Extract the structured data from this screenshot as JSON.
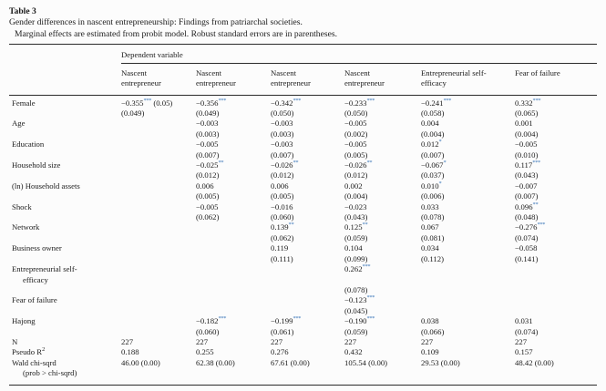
{
  "colors": {
    "text": "#1b1b1b",
    "rule": "#2b2b2b",
    "stars": "#3b76b8"
  },
  "caption": {
    "label": "Table 3",
    "title": "Gender differences in nascent entrepreneurship: Findings from patriarchal societies.",
    "note": "Marginal effects are estimated from probit model. Robust standard errors are in parentheses."
  },
  "header": {
    "spanner": "Dependent variable",
    "columns": [
      "Nascent entrepreneur",
      "Nascent entrepreneur",
      "Nascent entrepreneur",
      "Nascent entrepreneur",
      "Entrepreneurial self-efficacy",
      "Fear of failure"
    ]
  },
  "body": {
    "rows": [
      {
        "label": [
          {
            "t": "Female"
          }
        ],
        "cells": [
          [
            {
              "v": "−0.355",
              "s": "***",
              "a": " (0.05)"
            },
            "(0.049)"
          ],
          [
            {
              "v": "−0.356",
              "s": "***"
            },
            "(0.049)"
          ],
          [
            {
              "v": "−0.342",
              "s": "***"
            },
            "(0.050)"
          ],
          [
            {
              "v": "−0.233",
              "s": "***"
            },
            "(0.050)"
          ],
          [
            {
              "v": "−0.241",
              "s": "***"
            },
            "(0.058)"
          ],
          [
            {
              "v": "0.332",
              "s": "***"
            },
            "(0.065)"
          ]
        ]
      },
      {
        "label": [
          {
            "t": "Age"
          }
        ],
        "cells": [
          null,
          [
            "−0.003",
            "(0.003)"
          ],
          [
            "−0.003",
            "(0.003)"
          ],
          [
            "−0.005",
            "(0.002)"
          ],
          [
            "0.004",
            "(0.004)"
          ],
          [
            "0.001",
            "(0.004)"
          ]
        ]
      },
      {
        "label": [
          {
            "t": "Education"
          }
        ],
        "cells": [
          null,
          [
            "−0.005",
            "(0.007)"
          ],
          [
            "−0.003",
            "(0.007)"
          ],
          [
            "−0.005",
            "(0.005)"
          ],
          [
            {
              "v": "0.012",
              "s": "*"
            },
            "(0.007)"
          ],
          [
            "−0.005",
            "(0.010)"
          ]
        ]
      },
      {
        "label": [
          {
            "t": "Household size"
          }
        ],
        "cells": [
          null,
          [
            {
              "v": "−0.025",
              "s": "**"
            },
            "(0.012)"
          ],
          [
            {
              "v": "−0.026",
              "s": "**"
            },
            "(0.012)"
          ],
          [
            {
              "v": "−0.026",
              "s": "**"
            },
            "(0.012)"
          ],
          [
            {
              "v": "−0.067",
              "s": "*"
            },
            "(0.037)"
          ],
          [
            {
              "v": "0.117",
              "s": "***"
            },
            "(0.043)"
          ]
        ]
      },
      {
        "label": [
          {
            "t": "(ln) Household assets"
          }
        ],
        "cells": [
          null,
          [
            "0.006",
            "(0.005)"
          ],
          [
            "0.006",
            "(0.005)"
          ],
          [
            "0.002",
            "(0.004)"
          ],
          [
            {
              "v": "0.010",
              "s": "*"
            },
            "(0.006)"
          ],
          [
            "−0.007",
            "(0.007)"
          ]
        ]
      },
      {
        "label": [
          {
            "t": "Shock"
          }
        ],
        "cells": [
          null,
          [
            "−0.005",
            "(0.062)"
          ],
          [
            "−0.016",
            "(0.060)"
          ],
          [
            "−0.023",
            "(0.043)"
          ],
          [
            "0.033",
            "(0.078)"
          ],
          [
            {
              "v": "0.096",
              "s": "**"
            },
            "(0.048)"
          ]
        ]
      },
      {
        "label": [
          {
            "t": "Network"
          }
        ],
        "cells": [
          null,
          null,
          [
            {
              "v": "0.139",
              "s": "**"
            },
            "(0.062)"
          ],
          [
            {
              "v": "0.125",
              "s": "**"
            },
            "(0.059)"
          ],
          [
            "0.067",
            "(0.081)"
          ],
          [
            {
              "v": "−0.276",
              "s": "***"
            },
            "(0.074)"
          ]
        ]
      },
      {
        "label": [
          {
            "t": "Business owner"
          }
        ],
        "cells": [
          null,
          null,
          [
            "0.119",
            "(0.111)"
          ],
          [
            "0.104",
            "(0.099)"
          ],
          [
            "0.034",
            "(0.112)"
          ],
          [
            "−0.058",
            "(0.141)"
          ]
        ]
      },
      {
        "label": [
          {
            "t": "Entrepreneurial self-"
          },
          {
            "t": "efficacy",
            "ind": true
          }
        ],
        "cells": [
          null,
          null,
          null,
          [
            {
              "v": "0.262",
              "s": "***"
            },
            "",
            "(0.078)"
          ],
          null,
          null
        ]
      },
      {
        "label": [
          {
            "t": "Fear of failure"
          }
        ],
        "cells": [
          null,
          null,
          null,
          [
            {
              "v": "−0.123",
              "s": "***"
            },
            "(0.045)"
          ],
          null,
          null
        ]
      },
      {
        "label": [
          {
            "t": "Hajong"
          }
        ],
        "cells": [
          null,
          [
            {
              "v": "−0.182",
              "s": "***"
            },
            "(0.060)"
          ],
          [
            {
              "v": "−0.199",
              "s": "***"
            },
            "(0.061)"
          ],
          [
            {
              "v": "−0.190",
              "s": "***"
            },
            "(0.059)"
          ],
          [
            "0.038",
            "(0.066)"
          ],
          [
            "0.031",
            "(0.074)"
          ]
        ]
      },
      {
        "label": [
          {
            "t": "N"
          }
        ],
        "cells": [
          [
            "227"
          ],
          [
            "227"
          ],
          [
            "227"
          ],
          [
            "227"
          ],
          [
            "227"
          ],
          [
            "227"
          ]
        ]
      },
      {
        "label": [
          {
            "t": "Pseudo R",
            "sup": "2"
          }
        ],
        "cells": [
          [
            "0.188"
          ],
          [
            "0.255"
          ],
          [
            "0.276"
          ],
          [
            "0.432"
          ],
          [
            "0.109"
          ],
          [
            "0.157"
          ]
        ]
      },
      {
        "label": [
          {
            "t": "Wald chi-sqrd"
          },
          {
            "t": "(prob > chi-sqrd)",
            "ind": true
          }
        ],
        "cells": [
          [
            "46.00 (0.00)"
          ],
          [
            "62.38 (0.00)"
          ],
          [
            "67.61 (0.00)"
          ],
          [
            "105.54 (0.00)"
          ],
          [
            "29.53 (0.00)"
          ],
          [
            "48.42 (0.00)"
          ]
        ]
      }
    ]
  }
}
